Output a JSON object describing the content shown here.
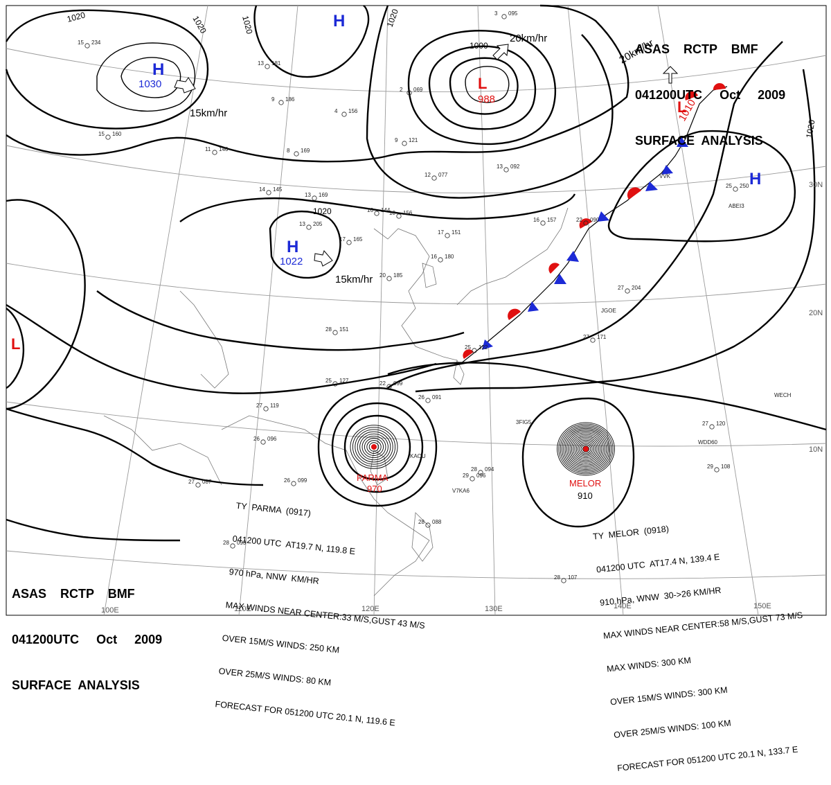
{
  "header_top": {
    "line1": "ASAS    RCTP    BMF",
    "line2": "041200UTC     Oct     2009",
    "line3": "SURFACE  ANALYSIS"
  },
  "header_bottom": {
    "line1": "ASAS    RCTP    BMF",
    "line2": "041200UTC     Oct     2009",
    "line3": "SURFACE  ANALYSIS"
  },
  "typhoon_parma": {
    "line1": "TY  PARMA  (0917)",
    "line2": "041200 UTC  AT19.7 N, 119.8 E",
    "line3": "970 hPa, NNW  KM/HR",
    "line4": "MAX WINDS NEAR CENTER:33 M/S,GUST 43 M/S",
    "line5": "OVER 15M/S WINDS: 250 KM",
    "line6": "OVER 25M/S WINDS: 80 KM",
    "line7": "FORECAST FOR 051200 UTC 20.1 N, 119.6 E"
  },
  "typhoon_melor": {
    "line1": "TY  MELOR  (0918)",
    "line2": "041200 UTC  AT17.4 N, 139.4 E",
    "line3": "910 hPa, WNW  30->26 KM/HR",
    "line4": "MAX WINDS NEAR CENTER:58 M/S,GUST 73 M/S",
    "line5": "MAX WINDS: 300 KM",
    "line6": "OVER 15M/S WINDS: 300 KM",
    "line7": "OVER 25M/S WINDS: 100 KM",
    "line8": "FORECAST FOR 051200 UTC 20.1 N, 133.7 E"
  },
  "systems": {
    "high_nw": {
      "symbol": "H",
      "pressure": "1030",
      "motion": "15km/hr"
    },
    "high_n": {
      "symbol": "H"
    },
    "high_china": {
      "symbol": "H",
      "pressure": "1022",
      "motion": "15km/hr"
    },
    "high_east": {
      "symbol": "H"
    },
    "low_ne": {
      "symbol": "L",
      "pressure": "988",
      "motion": "20km/hr"
    },
    "low_front": {
      "symbol": "L",
      "pressure": "1010",
      "motion": "20km/hr"
    },
    "low_west": {
      "symbol": "L"
    },
    "parma": {
      "name": "PARMA",
      "pressure": "970"
    },
    "melor": {
      "name": "MELOR",
      "pressure": "910"
    }
  },
  "isobar_labels": [
    "1020",
    "1020",
    "1020",
    "1020",
    "1000",
    "1020",
    "1020"
  ],
  "grid_labels": {
    "lon": [
      "110E",
      "120E",
      "130E",
      "140E",
      "150E",
      "100E"
    ],
    "lat": [
      "30N",
      "20N",
      "10N"
    ]
  },
  "stations": [
    {
      "t": "15",
      "p": "234"
    },
    {
      "t": "15",
      "p": "160"
    },
    {
      "t": "13",
      "p": "181"
    },
    {
      "t": "9",
      "p": "186"
    },
    {
      "t": "11",
      "p": "146"
    },
    {
      "t": "8",
      "p": "169"
    },
    {
      "t": "14",
      "p": "145"
    },
    {
      "t": "13",
      "p": "169"
    },
    {
      "t": "16",
      "p": "144"
    },
    {
      "t": "10",
      "p": "156"
    },
    {
      "t": "13",
      "p": "205"
    },
    {
      "t": "17",
      "p": "165"
    },
    {
      "t": "17",
      "p": "151"
    },
    {
      "t": "16",
      "p": "180"
    },
    {
      "t": "20",
      "p": "185"
    },
    {
      "t": "28",
      "p": "151"
    },
    {
      "t": "25",
      "p": "127"
    },
    {
      "t": "27",
      "p": "119"
    },
    {
      "t": "26",
      "p": "096"
    },
    {
      "t": "26",
      "p": "099"
    },
    {
      "t": "27",
      "p": "087"
    },
    {
      "t": "22",
      "p": "099"
    },
    {
      "t": "26",
      "p": "091"
    },
    {
      "t": "28",
      "p": "094"
    },
    {
      "t": "29",
      "p": "096"
    },
    {
      "t": "28",
      "p": "093"
    },
    {
      "t": "27",
      "p": "120"
    },
    {
      "t": "29",
      "p": "108"
    },
    {
      "t": "27",
      "p": "204"
    },
    {
      "t": "25",
      "p": "250"
    },
    {
      "t": "16",
      "p": "157"
    },
    {
      "t": "22",
      "p": "090"
    },
    {
      "t": "12",
      "p": "077"
    },
    {
      "t": "13",
      "p": "092"
    },
    {
      "t": "9",
      "p": "121"
    },
    {
      "t": "2",
      "p": "069"
    },
    {
      "t": "3",
      "p": "095"
    },
    {
      "t": "4",
      "p": "156"
    },
    {
      "t": "28",
      "p": "107"
    },
    {
      "t": "28",
      "p": "088"
    },
    {
      "t": "25",
      "p": "122"
    },
    {
      "t": "27",
      "p": "171"
    }
  ],
  "station_ids": [
    "KAOU",
    "V7KA6",
    "3FIG5",
    "WDD60",
    "WECH",
    "JGOE",
    "ABEI3",
    "VVK"
  ]
}
